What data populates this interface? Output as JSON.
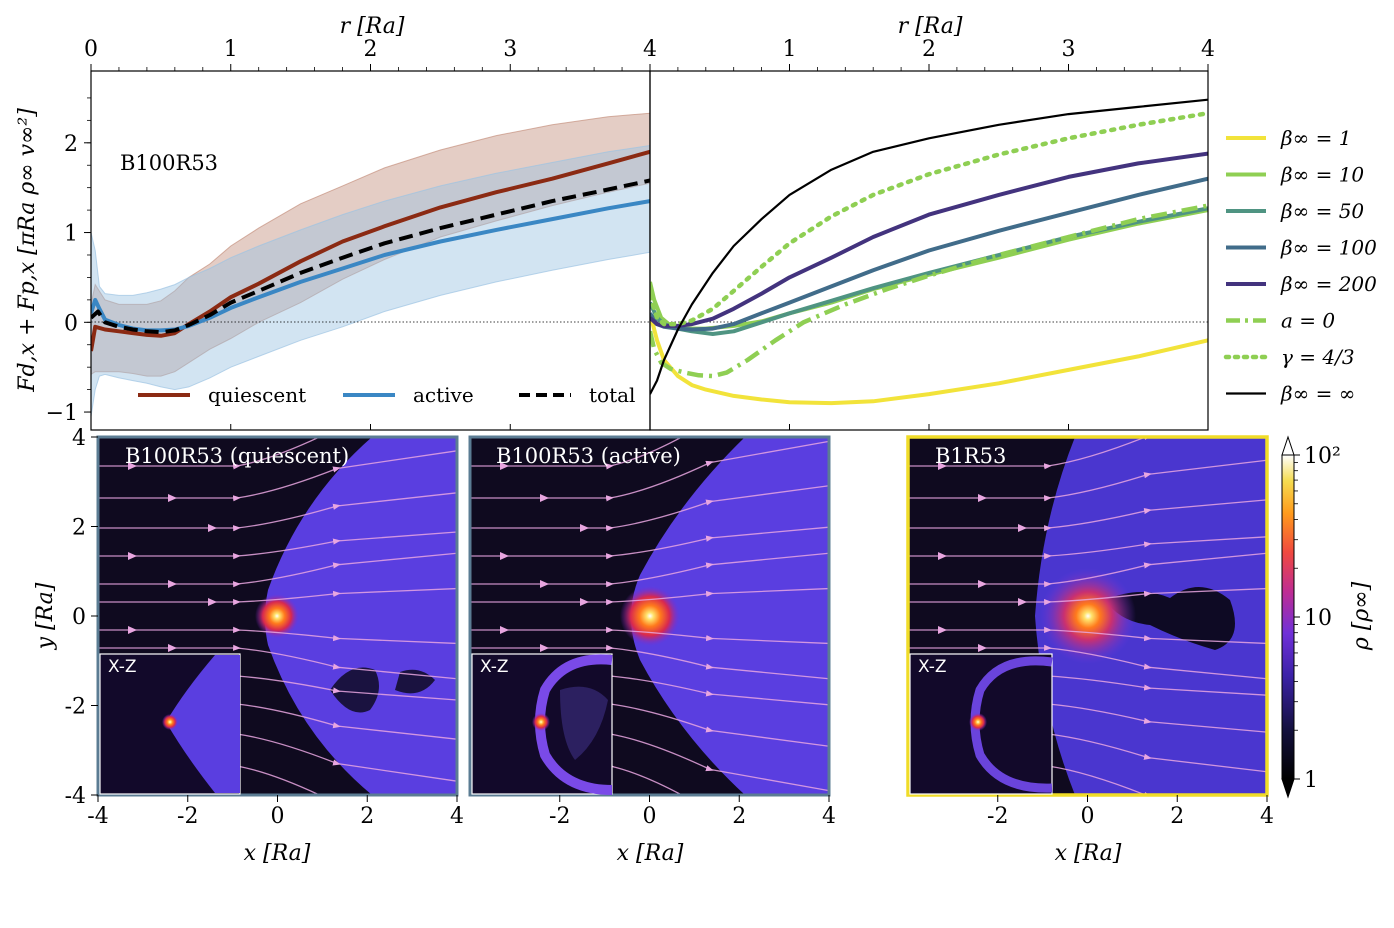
{
  "figure": {
    "colors": {
      "quiescent": "#8b2a13",
      "active": "#3a87c4",
      "total": "#000000",
      "beta1": "#f2e33a",
      "beta10": "#8fcf53",
      "beta50": "#4f9482",
      "beta100": "#416c8a",
      "beta200": "#43337e",
      "a0": "#8fcf53",
      "gamma43": "#8fcf53",
      "betainf": "#000000",
      "frame_left": "#5b7c93",
      "frame_right": "#f0dc28",
      "stream": "#e8a6e0"
    }
  },
  "chart_data": [
    {
      "type": "line",
      "panel": "top-left",
      "title": "B100R53",
      "xlabel": "r [R_a]",
      "xlabel_display": "r [Ra]",
      "ylabel": "F_d,x + F_p,x [π R_a ρ_∞ v_∞²]",
      "ylabel_display": "Fd,x + Fp,x [πRa ρ∞ v∞²]",
      "xlim": [
        0,
        4
      ],
      "ylim": [
        -1.2,
        2.8
      ],
      "xticks": [
        "0",
        "1",
        "2",
        "3",
        "4"
      ],
      "yticks": [
        "−1",
        "0",
        "1",
        "2"
      ],
      "reference_line": 0,
      "legend_position": "bottom",
      "series": [
        {
          "name": "quiescent",
          "style": "solid",
          "x": [
            0,
            0.03,
            0.1,
            0.2,
            0.3,
            0.4,
            0.5,
            0.6,
            0.7,
            0.85,
            1.0,
            1.2,
            1.5,
            1.8,
            2.1,
            2.5,
            2.9,
            3.3,
            3.7,
            4.0
          ],
          "y": [
            -0.32,
            -0.05,
            -0.08,
            -0.1,
            -0.12,
            -0.14,
            -0.15,
            -0.12,
            -0.02,
            0.12,
            0.28,
            0.43,
            0.68,
            0.9,
            1.07,
            1.28,
            1.45,
            1.6,
            1.77,
            1.9
          ],
          "band_lower": [
            -0.58,
            -0.55,
            -0.55,
            -0.55,
            -0.57,
            -0.6,
            -0.6,
            -0.55,
            -0.45,
            -0.3,
            -0.18,
            0.0,
            0.22,
            0.48,
            0.7,
            0.95,
            1.13,
            1.3,
            1.45,
            1.55
          ],
          "band_upper": [
            0.2,
            0.42,
            0.25,
            0.2,
            0.2,
            0.2,
            0.24,
            0.35,
            0.5,
            0.65,
            0.85,
            1.05,
            1.32,
            1.52,
            1.72,
            1.92,
            2.08,
            2.2,
            2.29,
            2.33
          ]
        },
        {
          "name": "active",
          "style": "solid",
          "x": [
            0,
            0.03,
            0.06,
            0.1,
            0.2,
            0.3,
            0.4,
            0.5,
            0.6,
            0.7,
            0.85,
            1.0,
            1.2,
            1.5,
            1.8,
            2.1,
            2.5,
            2.9,
            3.3,
            3.7,
            4.0
          ],
          "y": [
            0.1,
            0.25,
            0.15,
            0.03,
            -0.03,
            -0.07,
            -0.09,
            -0.09,
            -0.08,
            -0.04,
            0.05,
            0.16,
            0.28,
            0.45,
            0.6,
            0.75,
            0.9,
            1.03,
            1.15,
            1.27,
            1.35
          ],
          "band_lower": [
            -1.05,
            -0.75,
            -0.6,
            -0.58,
            -0.62,
            -0.65,
            -0.68,
            -0.72,
            -0.75,
            -0.72,
            -0.62,
            -0.5,
            -0.38,
            -0.2,
            -0.05,
            0.12,
            0.3,
            0.45,
            0.58,
            0.7,
            0.78
          ],
          "band_upper": [
            1.0,
            0.8,
            0.4,
            0.32,
            0.3,
            0.3,
            0.33,
            0.37,
            0.42,
            0.5,
            0.6,
            0.72,
            0.85,
            1.03,
            1.2,
            1.35,
            1.52,
            1.66,
            1.78,
            1.9,
            1.97
          ]
        },
        {
          "name": "total",
          "style": "dashed",
          "x": [
            0,
            0.05,
            0.1,
            0.2,
            0.3,
            0.4,
            0.5,
            0.6,
            0.7,
            0.85,
            1.0,
            1.2,
            1.5,
            1.8,
            2.1,
            2.5,
            2.9,
            3.3,
            3.7,
            4.0
          ],
          "y": [
            0.05,
            0.12,
            0.0,
            -0.05,
            -0.08,
            -0.1,
            -0.11,
            -0.09,
            -0.03,
            0.08,
            0.22,
            0.35,
            0.55,
            0.72,
            0.88,
            1.05,
            1.2,
            1.35,
            1.48,
            1.58
          ]
        }
      ]
    },
    {
      "type": "line",
      "panel": "top-right",
      "xlabel": "r [R_a]",
      "xlabel_display": "r [Ra]",
      "xlim": [
        0,
        4
      ],
      "ylim": [
        -1.2,
        2.8
      ],
      "xticks": [
        "1",
        "2",
        "3",
        "4"
      ],
      "reference_line": 0,
      "legend_position": "right",
      "series": [
        {
          "name": "β∞ = 1",
          "label": "β∞ = 1",
          "style": "solid",
          "x": [
            0,
            0.05,
            0.1,
            0.2,
            0.3,
            0.4,
            0.6,
            0.8,
            1.0,
            1.3,
            1.6,
            2.0,
            2.5,
            3.0,
            3.5,
            4.0
          ],
          "y": [
            0.1,
            -0.2,
            -0.42,
            -0.6,
            -0.7,
            -0.75,
            -0.82,
            -0.86,
            -0.89,
            -0.9,
            -0.88,
            -0.8,
            -0.68,
            -0.53,
            -0.38,
            -0.2
          ]
        },
        {
          "name": "β∞ = 10",
          "label": "β∞ = 10",
          "style": "solid",
          "x": [
            0,
            0.03,
            0.08,
            0.15,
            0.25,
            0.4,
            0.6,
            0.8,
            1.0,
            1.3,
            1.6,
            2.0,
            2.5,
            3.0,
            3.5,
            4.0
          ],
          "y": [
            0.45,
            0.25,
            0.05,
            -0.04,
            -0.07,
            -0.07,
            -0.04,
            0.01,
            0.1,
            0.22,
            0.37,
            0.53,
            0.72,
            0.92,
            1.1,
            1.25
          ]
        },
        {
          "name": "β∞ = 50",
          "label": "β∞ = 50",
          "style": "solid",
          "x": [
            0,
            0.05,
            0.1,
            0.2,
            0.3,
            0.45,
            0.6,
            0.8,
            1.0,
            1.3,
            1.6,
            2.0,
            2.5,
            3.0,
            3.5,
            4.0
          ],
          "y": [
            0.22,
            0.05,
            -0.02,
            -0.07,
            -0.1,
            -0.13,
            -0.1,
            0.0,
            0.1,
            0.24,
            0.38,
            0.55,
            0.75,
            0.95,
            1.12,
            1.27
          ]
        },
        {
          "name": "β∞ = 100",
          "label": "β∞ = 100",
          "style": "solid",
          "x": [
            0,
            0.05,
            0.1,
            0.2,
            0.3,
            0.45,
            0.6,
            0.8,
            1.0,
            1.3,
            1.6,
            2.0,
            2.5,
            3.0,
            3.5,
            4.0
          ],
          "y": [
            0.1,
            -0.02,
            -0.05,
            -0.07,
            -0.08,
            -0.07,
            -0.02,
            0.1,
            0.22,
            0.4,
            0.58,
            0.8,
            1.02,
            1.22,
            1.42,
            1.6
          ]
        },
        {
          "name": "β∞ = 200",
          "label": "β∞ = 200",
          "style": "solid",
          "x": [
            0,
            0.05,
            0.1,
            0.2,
            0.3,
            0.45,
            0.6,
            0.8,
            1.0,
            1.3,
            1.6,
            2.0,
            2.5,
            3.0,
            3.5,
            4.0
          ],
          "y": [
            0.05,
            -0.02,
            -0.04,
            -0.04,
            -0.02,
            0.04,
            0.15,
            0.32,
            0.5,
            0.72,
            0.95,
            1.2,
            1.42,
            1.62,
            1.77,
            1.88
          ]
        },
        {
          "name": "a = 0",
          "label": "a = 0",
          "style": "dashdot",
          "x": [
            0,
            0.03,
            0.08,
            0.15,
            0.25,
            0.35,
            0.45,
            0.55,
            0.7,
            0.9,
            1.1,
            1.4,
            1.7,
            2.0,
            2.5,
            3.0,
            3.5,
            4.0
          ],
          "y": [
            -0.1,
            -0.3,
            -0.45,
            -0.52,
            -0.56,
            -0.59,
            -0.6,
            -0.56,
            -0.42,
            -0.2,
            0.0,
            0.2,
            0.37,
            0.52,
            0.75,
            0.95,
            1.15,
            1.3
          ]
        },
        {
          "name": "γ = 4/3",
          "label": "γ = 4/3",
          "style": "dotted",
          "x": [
            0,
            0.05,
            0.1,
            0.2,
            0.3,
            0.45,
            0.6,
            0.8,
            1.0,
            1.3,
            1.6,
            2.0,
            2.5,
            3.0,
            3.5,
            4.0
          ],
          "y": [
            0.3,
            0.05,
            -0.02,
            -0.02,
            0.02,
            0.15,
            0.35,
            0.62,
            0.88,
            1.18,
            1.42,
            1.65,
            1.87,
            2.05,
            2.2,
            2.33
          ]
        },
        {
          "name": "β∞ = ∞",
          "label": "β∞ = ∞",
          "style": "solid",
          "x": [
            0,
            0.05,
            0.1,
            0.2,
            0.3,
            0.45,
            0.6,
            0.8,
            1.0,
            1.3,
            1.6,
            2.0,
            2.5,
            3.0,
            3.5,
            4.0
          ],
          "y": [
            -0.8,
            -0.65,
            -0.42,
            -0.08,
            0.2,
            0.55,
            0.85,
            1.15,
            1.42,
            1.7,
            1.9,
            2.05,
            2.2,
            2.32,
            2.4,
            2.48
          ]
        }
      ]
    },
    {
      "type": "heatmap",
      "panel": "bottom-left",
      "title": "B100R53 (quiescent)",
      "xlabel": "x [R_a]",
      "xlabel_display": "x [Ra]",
      "ylabel": "y [R_a]",
      "ylabel_display": "y [Ra]",
      "xlim": [
        -4,
        4
      ],
      "ylim": [
        -4,
        4
      ],
      "xticks": [
        "-4",
        "-2",
        "0",
        "2",
        "4"
      ],
      "yticks": [
        "4",
        "2",
        "0",
        "-2",
        "-4"
      ],
      "inset_label": "X-Z"
    },
    {
      "type": "heatmap",
      "panel": "bottom-middle",
      "title": "B100R53 (active)",
      "xlabel": "x [R_a]",
      "xlabel_display": "x [Ra]",
      "xlim": [
        -4,
        4
      ],
      "ylim": [
        -4,
        4
      ],
      "xticks": [
        "-2",
        "0",
        "2",
        "4"
      ],
      "inset_label": "X-Z"
    },
    {
      "type": "heatmap",
      "panel": "bottom-right",
      "title": "B1R53",
      "xlabel": "x [R_a]",
      "xlabel_display": "x [Ra]",
      "xlim": [
        -4,
        4
      ],
      "ylim": [
        -4,
        4
      ],
      "xticks": [
        "-2",
        "0",
        "2",
        "4"
      ],
      "inset_label": "X-Z"
    },
    {
      "type": "colorbar",
      "label": "ρ [ρ∞]",
      "label_display": "ρ [ρ∞]",
      "scale": "log",
      "range": [
        1,
        100
      ],
      "ticks": [
        "10²",
        "10",
        "1"
      ]
    }
  ]
}
